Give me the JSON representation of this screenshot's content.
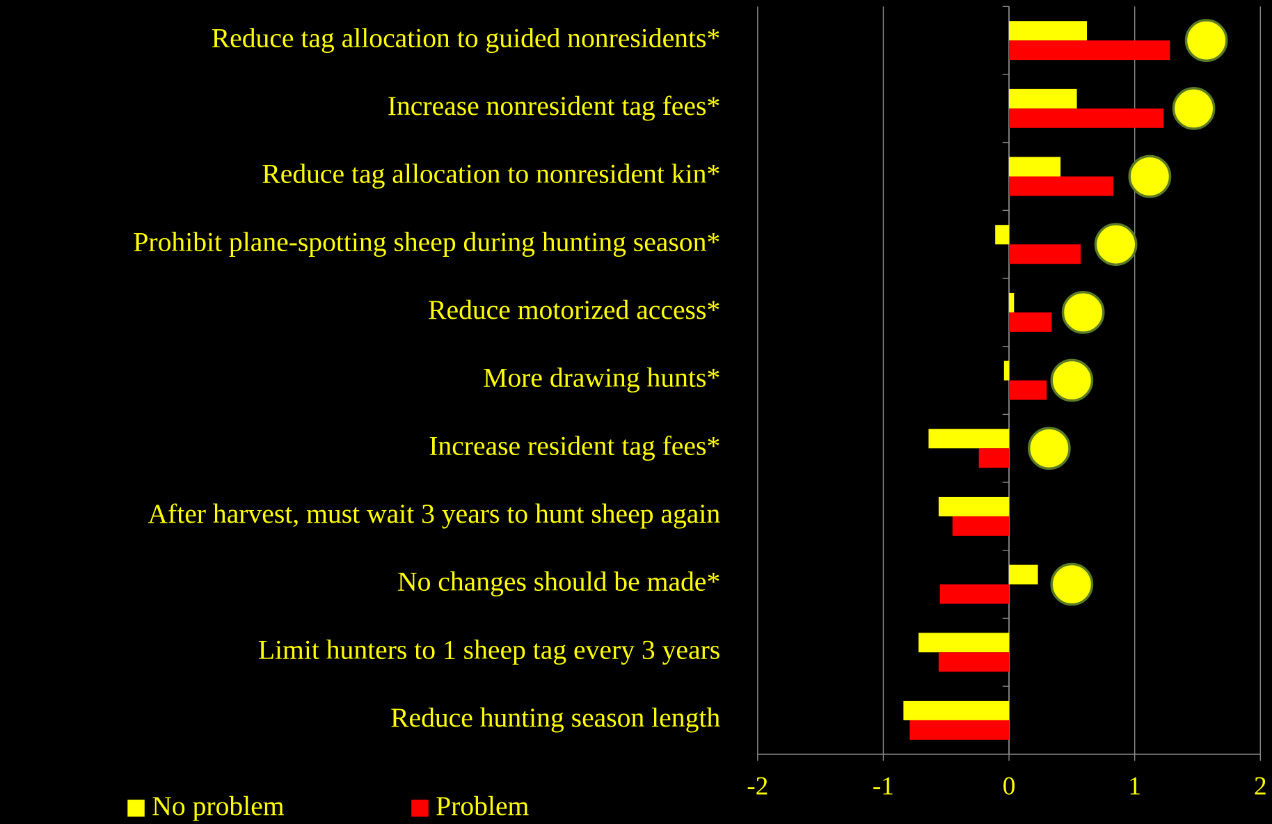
{
  "chart_data": {
    "type": "bar",
    "orientation": "horizontal",
    "categories": [
      "Reduce tag allocation to guided nonresidents*",
      "Increase nonresident tag fees*",
      "Reduce tag allocation to nonresident kin*",
      "Prohibit plane-spotting sheep during hunting season*",
      "Reduce motorized access*",
      "More drawing hunts*",
      "Increase resident tag fees*",
      "After harvest, must wait 3 years to hunt sheep again",
      "No changes should be made*",
      "Limit hunters to 1 sheep tag every 3 years",
      "Reduce hunting season length"
    ],
    "series": [
      {
        "name": "No problem",
        "color": "#ffff00",
        "values": [
          0.62,
          0.54,
          0.41,
          -0.11,
          0.04,
          -0.04,
          -0.64,
          -0.56,
          0.23,
          -0.72,
          -0.84
        ]
      },
      {
        "name": "Problem",
        "color": "#ff0000",
        "values": [
          1.28,
          1.23,
          0.83,
          0.57,
          0.34,
          0.3,
          -0.24,
          -0.45,
          -0.55,
          -0.56,
          -0.79
        ]
      }
    ],
    "significance_markers": {
      "color": "#ffff00",
      "edge_color": "#5a7a2a",
      "values": [
        1.57,
        1.47,
        1.12,
        0.85,
        0.59,
        0.5,
        0.32,
        null,
        0.5,
        null,
        null
      ]
    },
    "xlim": [
      -2,
      2
    ],
    "xticks": [
      -2,
      -1,
      0,
      1,
      2
    ],
    "grid": true,
    "legend": "bottom"
  }
}
